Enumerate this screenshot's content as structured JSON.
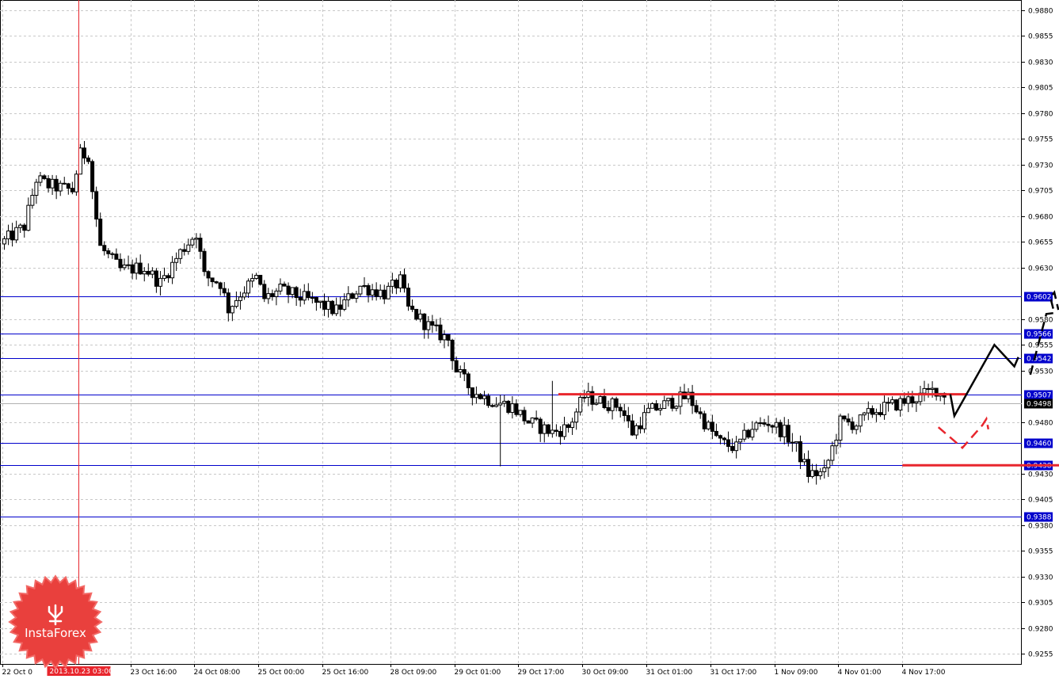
{
  "chart_data": {
    "type": "candlestick",
    "instrument": "",
    "ylim": [
      0.9245,
      0.989
    ],
    "grid": true,
    "y_ticks": [
      "0.9880",
      "0.9855",
      "0.9830",
      "0.9805",
      "0.9780",
      "0.9755",
      "0.9730",
      "0.9705",
      "0.9680",
      "0.9655",
      "0.9630",
      "0.9580",
      "0.9555",
      "0.9530",
      "0.9480",
      "0.9430",
      "0.9405",
      "0.9380",
      "0.9355",
      "0.9330",
      "0.9305",
      "0.9280",
      "0.9255"
    ],
    "x_ticks": [
      "22 Oct 0",
      "23 Oct 16:00",
      "24 Oct 08:00",
      "25 Oct 00:00",
      "25 Oct 16:00",
      "28 Oct 09:00",
      "29 Oct 01:00",
      "29 Oct 17:00",
      "30 Oct 09:00",
      "31 Oct 01:00",
      "31 Oct 17:00",
      "1 Nov 09:00",
      "4 Nov 01:00",
      "4 Nov 17:00"
    ],
    "x_tick_bars": [
      0,
      32,
      48,
      64,
      80,
      97,
      113,
      129,
      145,
      161,
      177,
      193,
      209,
      225
    ],
    "crosshair_label": "2013.10.23 03:00",
    "crosshair_bar": 19,
    "current_price": 0.9498,
    "current_price_label": "0.9498",
    "levels": [
      {
        "value": 0.9602,
        "label": "0.9602"
      },
      {
        "value": 0.9566,
        "label": "0.9566"
      },
      {
        "value": 0.9542,
        "label": "0.9542"
      },
      {
        "value": 0.9507,
        "label": "0.9507"
      },
      {
        "value": 0.946,
        "label": "0.9460"
      },
      {
        "value": 0.9438,
        "label": "0.9438"
      },
      {
        "value": 0.9388,
        "label": "0.9388"
      }
    ],
    "red_lines": [
      {
        "from_bar": 139,
        "to_bar": 241,
        "value": 0.9507
      },
      {
        "from_bar": 225,
        "to_bar": 317,
        "value": 0.9438
      }
    ],
    "forecast_black": [
      [
        237,
        0.9507
      ],
      [
        238,
        0.9486
      ],
      [
        248,
        0.9555
      ],
      [
        253,
        0.9534
      ],
      [
        254,
        0.9543
      ]
    ],
    "forecast_black_dashed": [
      [
        257,
        0.9526
      ],
      [
        261,
        0.9585
      ],
      [
        263,
        0.9586
      ],
      [
        262,
        0.9601
      ],
      [
        263,
        0.9606
      ],
      [
        264,
        0.9589
      ]
    ],
    "forecast_red_dashed": [
      [
        234,
        0.9475
      ],
      [
        240,
        0.9455
      ],
      [
        245,
        0.9477
      ],
      [
        246,
        0.9483
      ],
      [
        246.5,
        0.9473
      ]
    ],
    "anchors": [
      [
        0,
        0.9653
      ],
      [
        6,
        0.967
      ],
      [
        9,
        0.9716
      ],
      [
        12,
        0.971
      ],
      [
        18,
        0.9705
      ],
      [
        20,
        0.974
      ],
      [
        22,
        0.974
      ],
      [
        23,
        0.9705
      ],
      [
        25,
        0.965
      ],
      [
        30,
        0.9628
      ],
      [
        36,
        0.963
      ],
      [
        40,
        0.9615
      ],
      [
        45,
        0.9645
      ],
      [
        49,
        0.9664
      ],
      [
        51,
        0.9622
      ],
      [
        55,
        0.9615
      ],
      [
        57,
        0.959
      ],
      [
        60,
        0.9605
      ],
      [
        64,
        0.962
      ],
      [
        66,
        0.96
      ],
      [
        70,
        0.9608
      ],
      [
        76,
        0.96
      ],
      [
        84,
        0.9588
      ],
      [
        90,
        0.9612
      ],
      [
        96,
        0.9605
      ],
      [
        100,
        0.9617
      ],
      [
        102,
        0.959
      ],
      [
        108,
        0.957
      ],
      [
        112,
        0.956
      ],
      [
        114,
        0.953
      ],
      [
        118,
        0.951
      ],
      [
        122,
        0.9502
      ],
      [
        128,
        0.9495
      ],
      [
        132,
        0.948
      ],
      [
        138,
        0.947
      ],
      [
        142,
        0.9475
      ],
      [
        146,
        0.9505
      ],
      [
        150,
        0.95
      ],
      [
        155,
        0.9495
      ],
      [
        158,
        0.947
      ],
      [
        162,
        0.949
      ],
      [
        168,
        0.95
      ],
      [
        172,
        0.9505
      ],
      [
        176,
        0.948
      ],
      [
        180,
        0.946
      ],
      [
        184,
        0.9455
      ],
      [
        188,
        0.9475
      ],
      [
        192,
        0.948
      ],
      [
        196,
        0.947
      ],
      [
        199,
        0.9455
      ],
      [
        202,
        0.943
      ],
      [
        206,
        0.943
      ],
      [
        208,
        0.9455
      ],
      [
        210,
        0.948
      ],
      [
        214,
        0.9478
      ],
      [
        218,
        0.949
      ],
      [
        222,
        0.9495
      ],
      [
        226,
        0.95
      ],
      [
        230,
        0.9505
      ],
      [
        234,
        0.9512
      ],
      [
        235,
        0.9508
      ]
    ]
  },
  "logo": {
    "text": "InstaForex"
  }
}
